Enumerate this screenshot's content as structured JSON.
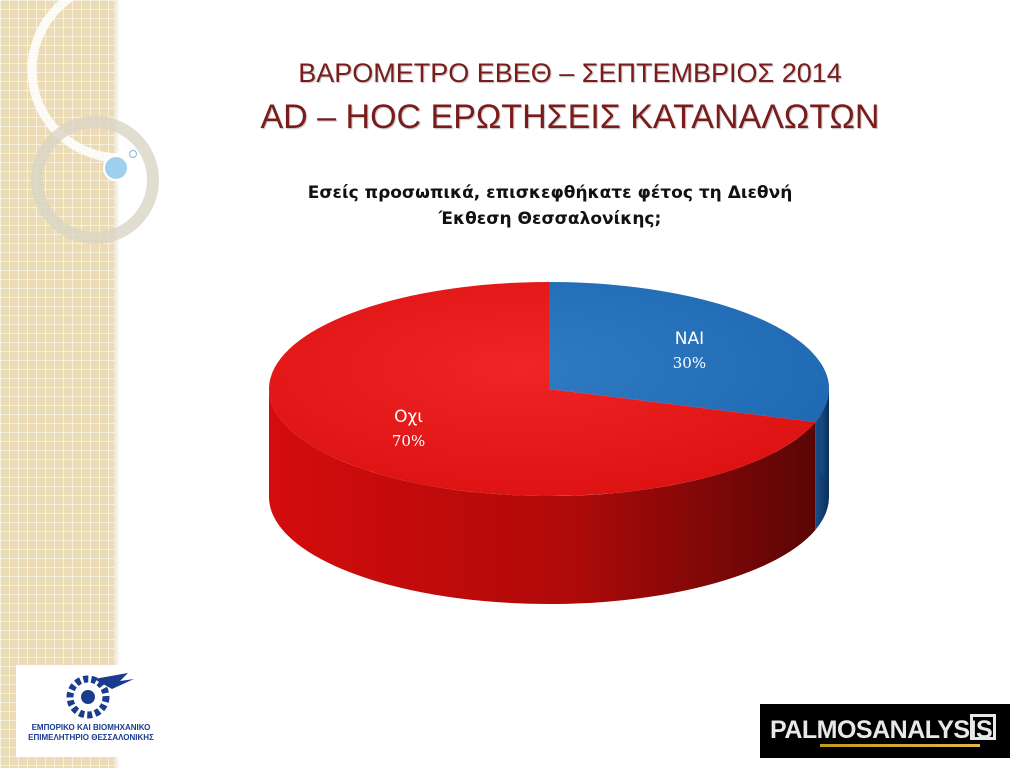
{
  "header": {
    "title_line1": "ΒΑΡΟΜΕΤΡΟ ΕΒΕΘ – ΣΕΠΤΕΜΒΡΙΟΣ 2014",
    "title_line2": "AD – HOC ΕΡΩΤΗΣΕΙΣ ΚΑΤΑΝΑΛΩΤΩΝ"
  },
  "chart_data": {
    "type": "pie",
    "title": "Εσείς προσωπικά, επισκεφθήκατε φέτος τη Διεθνή Έκθεση Θεσσαλονίκης;",
    "title_lines": [
      "Εσείς προσωπικά, επισκεφθήκατε φέτος τη Διεθνή",
      "Έκθεση Θεσσαλονίκης;"
    ],
    "slices": [
      {
        "label": "ΝΑΙ",
        "value": 30,
        "value_label": "30%",
        "color": "#1f6fbf"
      },
      {
        "label": "Οχι",
        "value": 70,
        "value_label": "70%",
        "color": "#ee1111"
      }
    ],
    "legend": "none",
    "style": "3d"
  },
  "logos": {
    "left_line1": "ΕΜΠΟΡΙΚΟ ΚΑΙ ΒΙΟΜΗΧΑΝΙΚΟ",
    "left_line2": "ΕΠΙΜΕΛΗΤΗΡΙΟ ΘΕΣΣΑΛΟΝΙΚΗΣ",
    "right_text": "PALMOSANALYSIS"
  }
}
